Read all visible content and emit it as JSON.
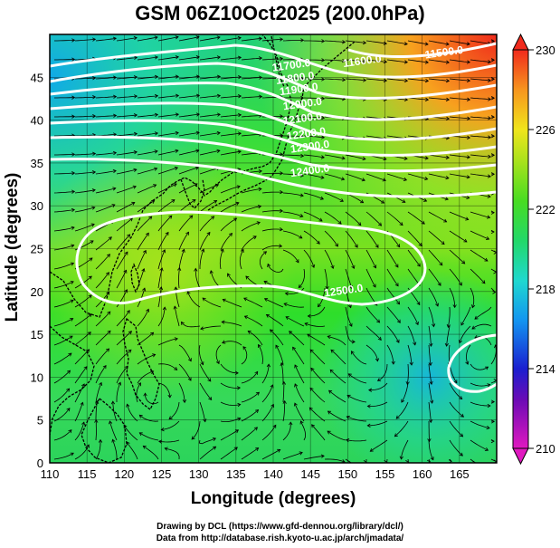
{
  "title": "GSM 06Z10Oct2025 (200.0hPa)",
  "credits": {
    "line1": "Drawing by DCL (https://www.gfd-dennou.org/library/dcl/)",
    "line2": "Data from http://database.rish.kyoto-u.ac.jp/arch/jmadata/"
  },
  "map": {
    "xlabel": "Longitude (degrees)",
    "ylabel": "Latitude  (degrees)",
    "xlim": [
      110,
      170
    ],
    "ylim": [
      0,
      50
    ],
    "xticks": [
      110,
      115,
      120,
      125,
      130,
      135,
      140,
      145,
      150,
      155,
      160,
      165
    ],
    "yticks": [
      0,
      5,
      10,
      15,
      20,
      25,
      30,
      35,
      40,
      45
    ],
    "grid": true,
    "contours": [
      {
        "label": "11500.0",
        "lon": 163,
        "lat": 47.5
      },
      {
        "label": "11600.0",
        "lon": 152,
        "lat": 46.5
      },
      {
        "label": "11700.0",
        "lon": 142.5,
        "lat": 46
      },
      {
        "label": "11800.0",
        "lon": 143,
        "lat": 44.5
      },
      {
        "label": "11900.0",
        "lon": 143.5,
        "lat": 43.2
      },
      {
        "label": "12000.0",
        "lon": 144,
        "lat": 41.5
      },
      {
        "label": "12100.0",
        "lon": 144,
        "lat": 39.8
      },
      {
        "label": "12200.0",
        "lon": 144.5,
        "lat": 38
      },
      {
        "label": "12300.0",
        "lon": 145,
        "lat": 36.5
      },
      {
        "label": "12400.0",
        "lon": 145,
        "lat": 33.7
      },
      {
        "label": "12500.0",
        "lon": 149.5,
        "lat": 19.7
      }
    ]
  },
  "colorbar": {
    "ticks": [
      230,
      226,
      222,
      218,
      214,
      210
    ],
    "min": 210,
    "max": 230
  },
  "colors": {
    "land_line": "#000000",
    "contour": "#ffffff"
  }
}
